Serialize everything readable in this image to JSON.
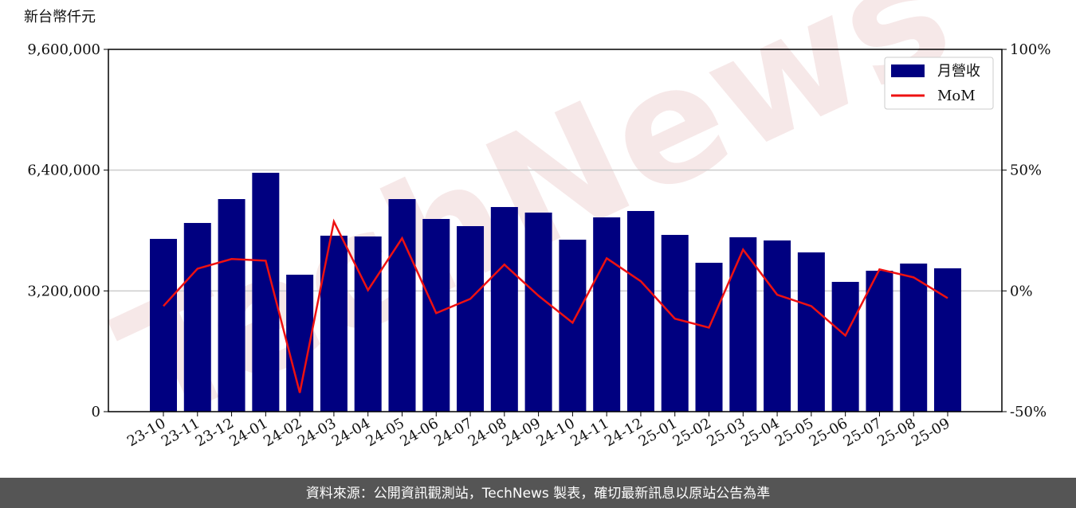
{
  "chart_data": {
    "type": "bar",
    "y_label": "新台幣仟元",
    "watermark": "TechNews",
    "categories": [
      "23-10",
      "23-11",
      "23-12",
      "24-01",
      "24-02",
      "24-03",
      "24-04",
      "24-05",
      "24-06",
      "24-07",
      "24-08",
      "24-09",
      "24-10",
      "24-11",
      "24-12",
      "25-01",
      "25-02",
      "25-03",
      "25-04",
      "25-05",
      "25-06",
      "25-07",
      "25-08",
      "25-09"
    ],
    "series": [
      {
        "name": "月營收",
        "type": "bar",
        "color": "#000080",
        "values": [
          4578000,
          5000000,
          5633000,
          6330000,
          3629000,
          4663000,
          4642000,
          5633000,
          5106000,
          4916000,
          5422000,
          5275000,
          4557000,
          5148000,
          5317000,
          4684000,
          3945000,
          4621000,
          4536000,
          4220000,
          3439000,
          3734000,
          3924000,
          3798000
        ]
      },
      {
        "name": "MoM",
        "type": "line",
        "axis": "y2",
        "color": "#ee1111",
        "values": [
          -6.3,
          9.2,
          13.2,
          12.5,
          -42.2,
          28.7,
          0.3,
          21.8,
          -9.2,
          -3.3,
          10.9,
          -2.0,
          -13.2,
          13.5,
          4.0,
          -11.5,
          -15.2,
          17.1,
          -1.6,
          -6.3,
          -18.5,
          8.9,
          5.6,
          -3.0
        ]
      }
    ],
    "ylim": [
      0,
      9600000
    ],
    "yticks": [
      0,
      {
        "value": 3200000,
        "label": "3,200,000"
      },
      {
        "value": 6400000,
        "label": "6,400,000"
      },
      {
        "value": 9600000,
        "label": "9,600,000"
      }
    ],
    "y2lim": [
      -50,
      100
    ],
    "y2ticks": [
      {
        "value": -50,
        "label": "-50%"
      },
      {
        "value": 0,
        "label": "0%"
      },
      {
        "value": 50,
        "label": "50%"
      },
      {
        "value": 100,
        "label": "100%"
      }
    ],
    "grid": true,
    "legend": "upper right"
  },
  "footer": "資料來源：公開資訊觀測站，TechNews 製表，確切最新訊息以原站公告為準"
}
